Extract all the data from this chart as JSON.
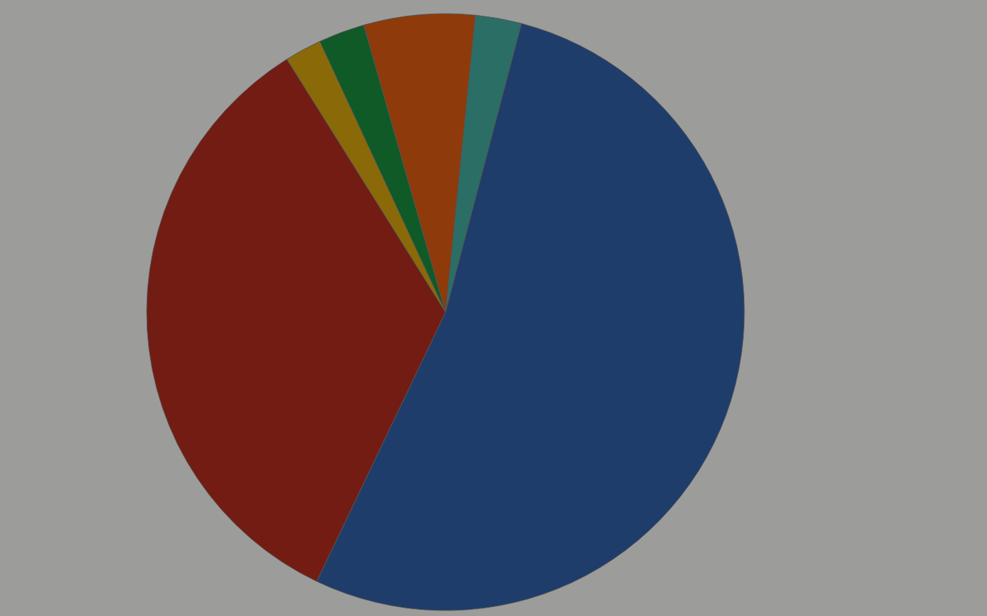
{
  "chart_data": {
    "type": "pie",
    "categories": [
      null,
      null,
      null,
      null,
      null,
      null
    ],
    "values": [
      2.5,
      53,
      34,
      2,
      2.5,
      6
    ],
    "colors": [
      "#2a6e66",
      "#1e3d6a",
      "#731c14",
      "#8a6a08",
      "#0f5a26",
      "#8e3a0a"
    ]
  }
}
